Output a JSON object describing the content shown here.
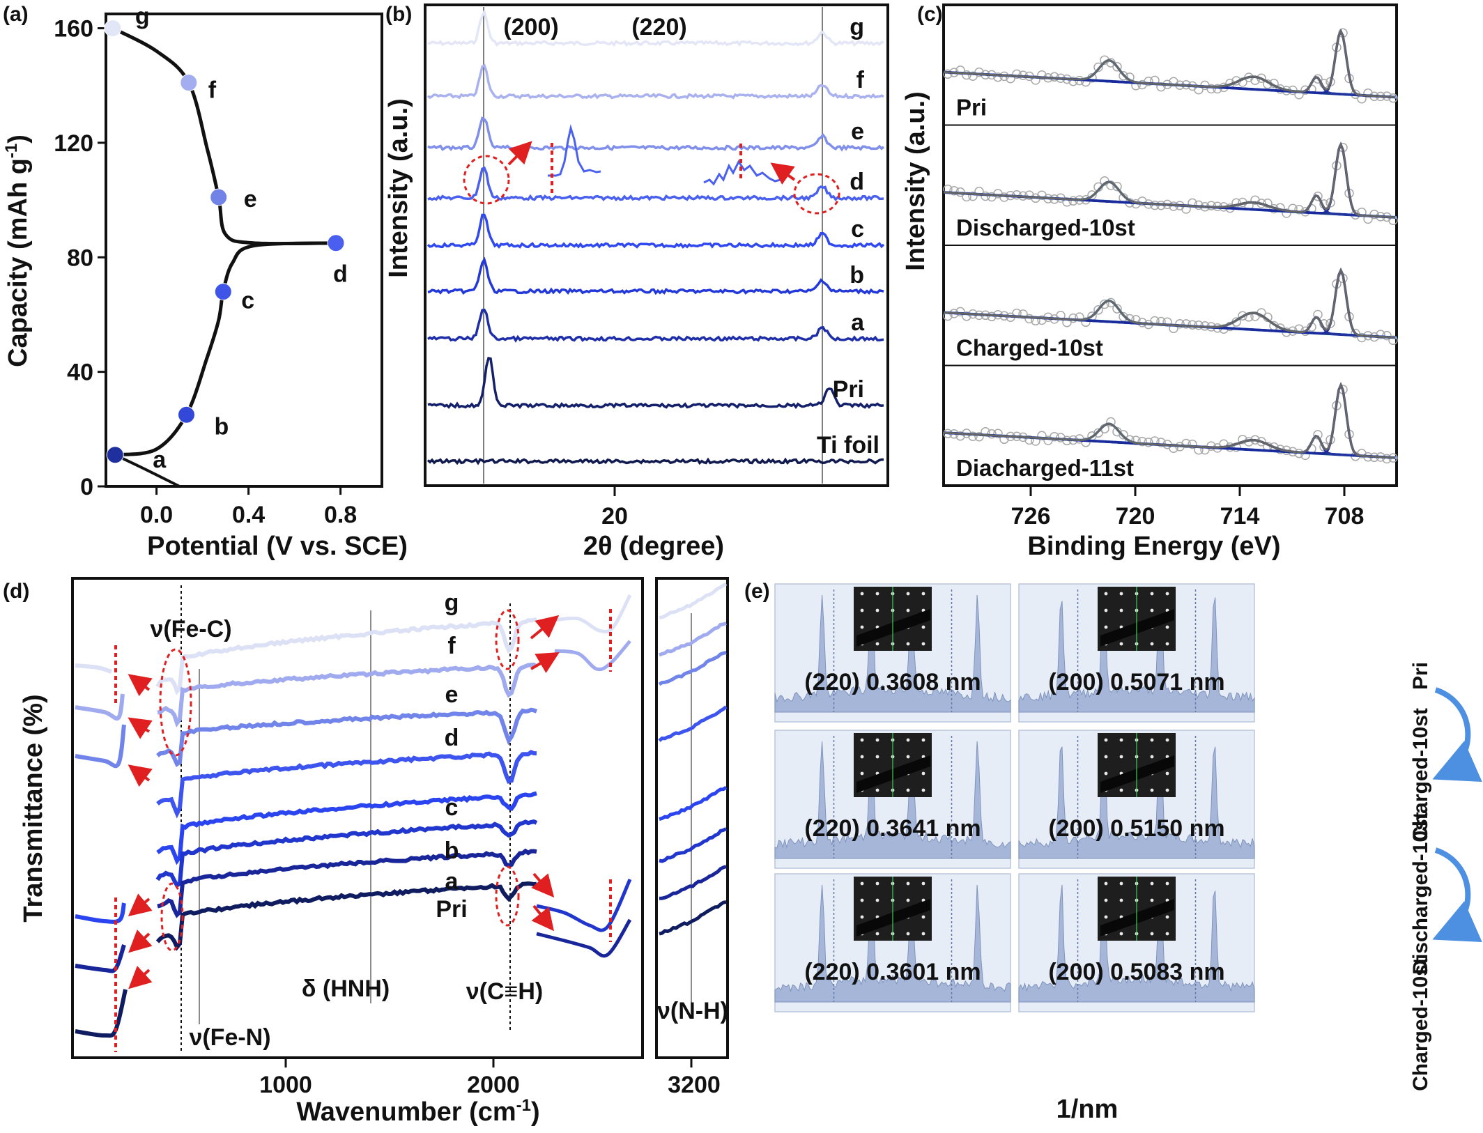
{
  "chart_data": [
    {
      "panel": "(a)",
      "type": "line",
      "xlabel": "Potential (V vs. SCE)",
      "ylabel": "Capacity (mAh g",
      "ylabel_sup": "-1",
      "ylabel_end": ")",
      "xticks": [
        0.0,
        0.4,
        0.8
      ],
      "xtick_labels": [
        "0.0",
        "0.4",
        "0.8"
      ],
      "yticks": [
        0,
        40,
        80,
        120,
        160
      ],
      "ytick_labels": [
        "0",
        "40",
        "80",
        "120",
        "160"
      ],
      "xlim": [
        -0.22,
        0.98
      ],
      "ylim": [
        0,
        165
      ],
      "curve_charge": [
        [
          -0.18,
          11
        ],
        [
          0.0,
          13
        ],
        [
          0.13,
          25
        ],
        [
          0.22,
          45
        ],
        [
          0.27,
          58
        ],
        [
          0.29,
          68
        ],
        [
          0.33,
          78
        ],
        [
          0.42,
          84
        ],
        [
          0.78,
          85
        ]
      ],
      "curve_discharge": [
        [
          0.78,
          85
        ],
        [
          0.42,
          85
        ],
        [
          0.3,
          88
        ],
        [
          0.27,
          101
        ],
        [
          0.22,
          118
        ],
        [
          0.14,
          141
        ],
        [
          0.0,
          152
        ],
        [
          -0.19,
          160
        ]
      ],
      "curve_tail": [
        [
          -0.18,
          11
        ],
        [
          -0.05,
          6
        ],
        [
          0.1,
          0
        ]
      ],
      "points": [
        {
          "label": "a",
          "x": -0.18,
          "y": 11,
          "color": "#1f2f9e"
        },
        {
          "label": "b",
          "x": 0.13,
          "y": 25,
          "color": "#3347d8"
        },
        {
          "label": "c",
          "x": 0.29,
          "y": 68,
          "color": "#3f55e8"
        },
        {
          "label": "d",
          "x": 0.78,
          "y": 85,
          "color": "#4a5ef0"
        },
        {
          "label": "e",
          "x": 0.27,
          "y": 101,
          "color": "#7283e8"
        },
        {
          "label": "f",
          "x": 0.14,
          "y": 141,
          "color": "#a3aef0"
        },
        {
          "label": "g",
          "x": -0.19,
          "y": 160,
          "color": "#e3e6f7"
        }
      ]
    },
    {
      "panel": "(b)",
      "type": "line",
      "xlabel": "2θ (degree)",
      "ylabel": "Intensity (a.u.)",
      "xtick_labels": [
        "20"
      ],
      "peak_labels": [
        "(200)",
        "(220)"
      ],
      "series": [
        {
          "name": "g",
          "color": "#e3e6f7"
        },
        {
          "name": "f",
          "color": "#a9b2ee"
        },
        {
          "name": "e",
          "color": "#8090ea"
        },
        {
          "name": "d",
          "color": "#4a60ee"
        },
        {
          "name": "c",
          "color": "#2f48f0"
        },
        {
          "name": "b",
          "color": "#2238d8"
        },
        {
          "name": "a",
          "color": "#1e2ea8"
        },
        {
          "name": "Pri",
          "color": "#14206a"
        },
        {
          "name": "Ti foil",
          "color": "#101a4e"
        }
      ]
    },
    {
      "panel": "(c)",
      "type": "line",
      "xlabel": "Binding Energy (eV)",
      "ylabel": "Intensity (a.u.)",
      "xticks": [
        726,
        720,
        714,
        708
      ],
      "xtick_labels": [
        "726",
        "720",
        "714",
        "708"
      ],
      "xlim": [
        731,
        705
      ],
      "subpanels": [
        "Pri",
        "Discharged-10st",
        "Charged-10st",
        "Diacharged-11st"
      ]
    },
    {
      "panel": "(d)",
      "type": "line",
      "xlabel": "Wavenumber (cm",
      "xlabel_sup": "-1",
      "xlabel_end": ")",
      "ylabel": "Transmittance (%)",
      "xticks": [
        1000,
        2000
      ],
      "xtick_labels": [
        "1000",
        "2000"
      ],
      "right_xtick_labels": [
        "3200"
      ],
      "annotations": [
        "ν(Fe-C)",
        "δ (HNH)",
        "ν(C≡H)",
        "ν(Fe-N)",
        "ν(N-H)"
      ],
      "series": [
        {
          "name": "g",
          "color": "#dde1f6"
        },
        {
          "name": "f",
          "color": "#a0aaee"
        },
        {
          "name": "e",
          "color": "#7184ea"
        },
        {
          "name": "d",
          "color": "#3d55ee"
        },
        {
          "name": "c",
          "color": "#2a44f0"
        },
        {
          "name": "b",
          "color": "#2036cc"
        },
        {
          "name": "a",
          "color": "#18269a"
        },
        {
          "name": "Pri",
          "color": "#101c60"
        }
      ]
    },
    {
      "panel": "(e)",
      "type": "bar",
      "xlabel": "1/nm",
      "cells": [
        {
          "label": "(220) 0.3608 nm"
        },
        {
          "label": "(200) 0.5071 nm"
        },
        {
          "label": "(220) 0.3641 nm"
        },
        {
          "label": "(200) 0.5150 nm"
        },
        {
          "label": "(220) 0.3601 nm"
        },
        {
          "label": "(200) 0.5083 nm"
        }
      ],
      "side_labels": [
        "Pri",
        "Charged-10st",
        "Discharged-10st",
        "Charged-10st"
      ]
    }
  ]
}
